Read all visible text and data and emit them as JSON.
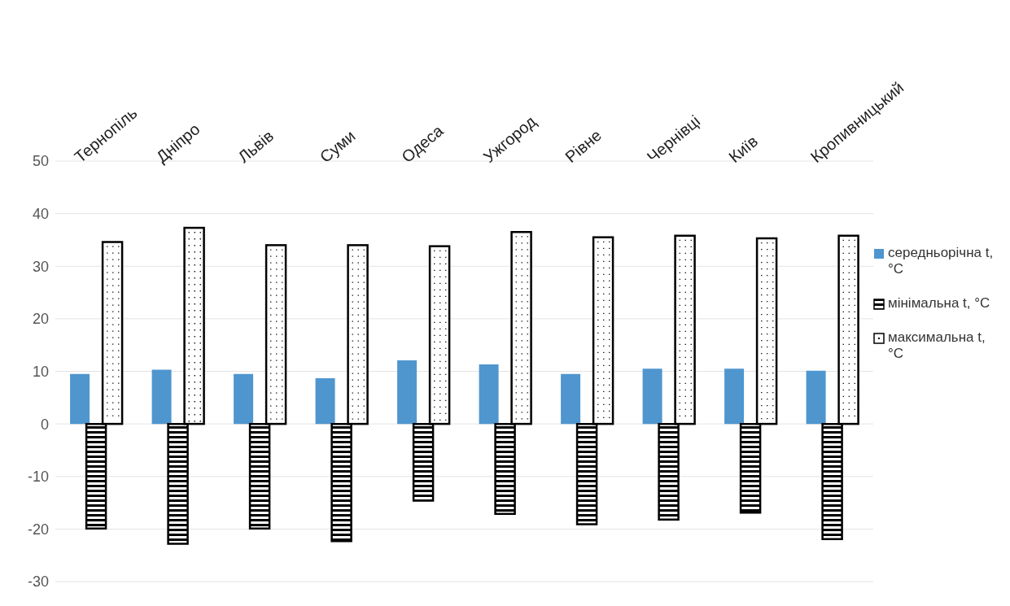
{
  "chart_data": {
    "type": "bar",
    "categories": [
      "Тернопіль",
      "Дніпро",
      "Львів",
      "Суми",
      "Одеса",
      "Ужгород",
      "Рівне",
      "Чернівці",
      "Київ",
      "Кропивницький"
    ],
    "series": [
      {
        "name": "середньорічна t, °C",
        "color": "#4f96cf",
        "values": [
          9.5,
          10.3,
          9.5,
          8.7,
          12.1,
          11.3,
          9.5,
          10.5,
          10.5,
          10.1
        ]
      },
      {
        "name": "мінімальна t, °C",
        "color": "#000000",
        "values": [
          -19.9,
          -22.8,
          -19.9,
          -22.3,
          -14.6,
          -17.1,
          -19.1,
          -18.2,
          -16.9,
          -21.9
        ]
      },
      {
        "name": "максимальна t, °C",
        "color": "#ffffff",
        "values": [
          34.6,
          37.3,
          34.0,
          34.0,
          33.8,
          36.5,
          35.5,
          35.8,
          35.3,
          35.8
        ]
      }
    ],
    "ylim": [
      -30,
      50
    ],
    "yticks": [
      -30,
      -20,
      -10,
      0,
      10,
      20,
      30,
      40,
      50
    ],
    "grid": "y",
    "legend": "right"
  }
}
